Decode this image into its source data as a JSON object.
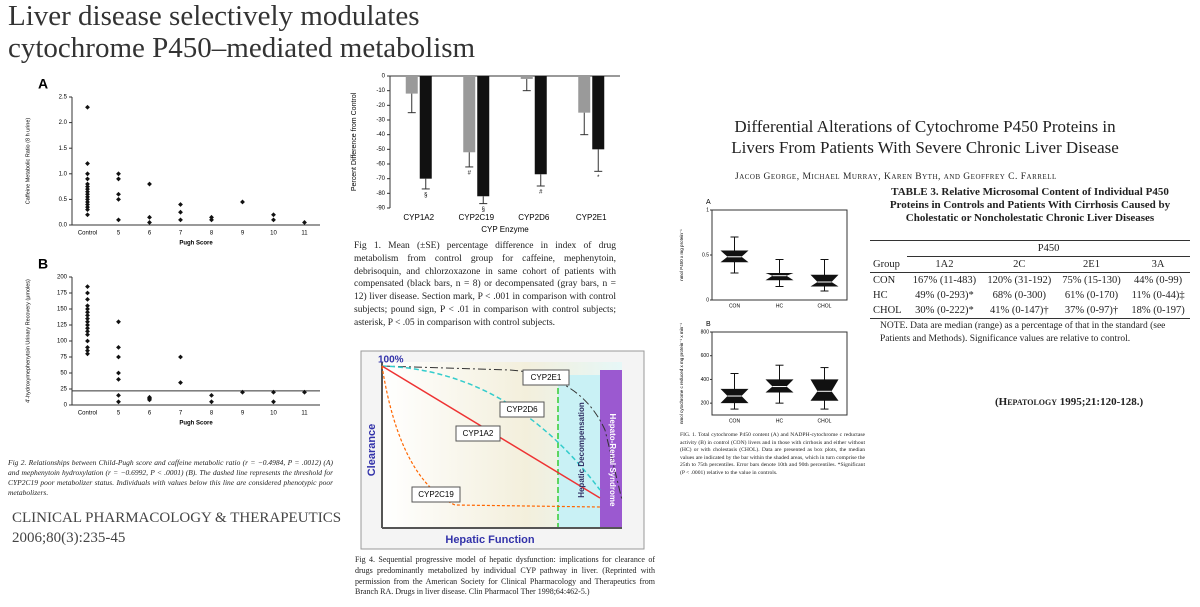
{
  "left_paper": {
    "title": [
      "Liver disease selectively modulates",
      "cytochrome P450–mediated metabolism"
    ],
    "fig2": {
      "panel_a": {
        "label": "A",
        "y_label": "Caffeine Metabolic Ratio (8 h urine)",
        "x_label": "Pugh Score",
        "categories": [
          "Control",
          "5",
          "6",
          "7",
          "8",
          "9",
          "10",
          "11"
        ],
        "groups": [
          [
            2.3,
            1.2,
            1.0,
            0.9,
            0.8,
            0.75,
            0.7,
            0.65,
            0.6,
            0.55,
            0.5,
            0.45,
            0.4,
            0.35,
            0.3,
            0.2
          ],
          [
            1.0,
            0.9,
            0.6,
            0.5,
            0.1
          ],
          [
            0.8,
            0.15,
            0.05
          ],
          [
            0.4,
            0.25,
            0.1
          ],
          [
            0.15,
            0.1
          ],
          [
            0.45
          ],
          [
            0.2,
            0.1
          ],
          [
            0.05
          ]
        ],
        "ylim": [
          0,
          2.5
        ],
        "yticks": [
          {
            "value": 0,
            "label": "0.0"
          },
          {
            "value": 0.5,
            "label": "0.5"
          },
          {
            "value": 1,
            "label": "1.0"
          },
          {
            "value": 1.5,
            "label": "1.5"
          },
          {
            "value": 2,
            "label": "2.0"
          },
          {
            "value": 2.5,
            "label": "2.5"
          }
        ]
      },
      "panel_b": {
        "label": "B",
        "y_label": "4'-hydroxymephenytoin Urinary Recovery (μmoles)",
        "x_label": "Pugh Score",
        "categories": [
          "Control",
          "5",
          "6",
          "7",
          "8",
          "9",
          "10",
          "11"
        ],
        "groups": [
          [
            185,
            175,
            165,
            155,
            150,
            145,
            140,
            135,
            130,
            125,
            120,
            115,
            110,
            100,
            90,
            85,
            80
          ],
          [
            130,
            90,
            75,
            50,
            40,
            15,
            5
          ],
          [
            12,
            10,
            8
          ],
          [
            75,
            35
          ],
          [
            15,
            5
          ],
          [
            20
          ],
          [
            20,
            5
          ],
          [
            20
          ]
        ],
        "threshold": 22,
        "ylim": [
          0,
          200
        ],
        "yticks": [
          0,
          25,
          50,
          75,
          100,
          125,
          150,
          175,
          200
        ]
      },
      "caption": "Fig 2. Relationships between Child-Pugh score and caffeine metabolic ratio (r = −0.4984, P = .0012) (A) and mephenytoin hydroxylation (r = −0.6992, P < .0001) (B). The dashed line represents the threshold for CYP2C19 poor metabolizer status. Individuals with values below this line are considered phenotypic poor metabolizers."
    },
    "journal": [
      "CLINICAL PHARMACOLOGY & THERAPEUTICS",
      "2006;80(3):235-45"
    ]
  },
  "fig1": {
    "y_label": "Percent Difference from Control",
    "x_label": "CYP Enzyme",
    "categories": [
      "CYP1A2",
      "CYP2C19",
      "CYP2D6",
      "CYP2E1"
    ],
    "series": [
      {
        "color": "#9a9a9a",
        "values": [
          -12,
          -52,
          -2,
          -25
        ],
        "errors": [
          13,
          10,
          8,
          15
        ],
        "marks": [
          null,
          "#",
          null,
          null
        ]
      },
      {
        "color": "#111111",
        "values": [
          -70,
          -82,
          -67,
          -50
        ],
        "errors": [
          7,
          5,
          8,
          15
        ],
        "marks": [
          "§",
          "§",
          "#",
          "*"
        ]
      }
    ],
    "ylim": [
      -90,
      0
    ],
    "yticks": [
      0,
      -10,
      -20,
      -30,
      -40,
      -50,
      -60,
      -70,
      -80,
      -90
    ],
    "caption": "Fig 1. Mean (±SE) percentage difference in index of drug metabolism from control group for caffeine, mephenytoin, debrisoquin, and chlorzoxazone in same cohort of patients with compensated (black bars, n = 8) or decompensated (gray bars, n = 12) liver disease. Section mark, P < .001 in comparison with control subjects; pound sign, P < .01 in comparison with control subjects; asterisk, P < .05 in comparison with control subjects."
  },
  "fig4": {
    "top_label": "100%",
    "y_label": "Clearance",
    "x_label": "Hepatic Function",
    "curves": [
      "CYP2E1",
      "CYP2D6",
      "CYP1A2",
      "CYP2C19"
    ],
    "zones": [
      "Hepatic Decompensation",
      "Hepato-Renal Syndrome"
    ],
    "caption": "Fig 4. Sequential progressive model of hepatic dysfunction: implications for clearance of drugs predominantly metabolized by individual CYP pathway in liver. (Reprinted with permission from the American Society for Clinical Pharmacology and Therapeutics from Branch RA. Drugs in liver disease. Clin Pharmacol Ther 1998;64:462-5.)"
  },
  "right_paper": {
    "title": [
      "Differential Alterations of Cytochrome P450 Proteins in",
      "Livers From Patients With Severe Chronic Liver Disease"
    ],
    "authors": "Jacob George, Michael Murray, Karen Byth, and Geoffrey C. Farrell",
    "boxfig": {
      "categories": [
        "CON",
        "HC",
        "CHOL"
      ],
      "panel_a": {
        "label": "A",
        "y_label": "nmol P450 x mg protein⁻¹",
        "ylim": [
          0,
          1
        ],
        "yticks": [
          0,
          0.5,
          1
        ],
        "boxes": [
          {
            "low": 0.3,
            "q1": 0.42,
            "median": 0.48,
            "q3": 0.55,
            "high": 0.7
          },
          {
            "low": 0.15,
            "q1": 0.22,
            "median": 0.27,
            "q3": 0.3,
            "high": 0.45
          },
          {
            "low": 0.1,
            "q1": 0.15,
            "median": 0.2,
            "q3": 0.28,
            "high": 0.45
          }
        ]
      },
      "panel_b": {
        "label": "B",
        "y_label": "nmol cytochrome c reduced x mg protein⁻¹ x min⁻¹",
        "ylim": [
          100,
          800
        ],
        "yticks": [
          200,
          400,
          600,
          800
        ],
        "boxes": [
          {
            "low": 150,
            "q1": 200,
            "median": 260,
            "q3": 320,
            "high": 450
          },
          {
            "low": 200,
            "q1": 290,
            "median": 340,
            "q3": 400,
            "high": 520
          },
          {
            "low": 150,
            "q1": 220,
            "median": 300,
            "q3": 400,
            "high": 500
          }
        ]
      },
      "caption": "FIG. 1. Total cytochrome P450 content (A) and NADPH-cytochrome c reductase activity (B) in control (CON) livers and in those with cirrhosis and either without (HC) or with cholestasis (CHOL). Data are presented as box plots, the median values are indicated by the bar within the shaded areas, which in turn comprise the 25th to 75th percentiles. Error bars denote 10th and 90th percentiles. *Significant (P < .0001) relative to the value in controls."
    },
    "table": {
      "title": "TABLE 3. Relative Microsomal Content of Individual P450 Proteins in Controls and Patients With Cirrhosis Caused by Cholestatic or Noncholestatic Chronic Liver Diseases",
      "group_header": "P450",
      "columns": [
        "Group",
        "1A2",
        "2C",
        "2E1",
        "3A"
      ],
      "rows": [
        [
          "CON",
          "167% (11-483)",
          "120% (31-192)",
          "75% (15-130)",
          "44% (0-99)"
        ],
        [
          "HC",
          "49% (0-293)*",
          "68% (0-300)",
          "61% (0-170)",
          "11% (0-44)‡"
        ],
        [
          "CHOL",
          "30% (0-222)*",
          "41% (0-147)†",
          "37% (0-97)†",
          "18% (0-197)"
        ]
      ],
      "note": "NOTE. Data are median (range) as a percentage of that in the standard (see Patients and Methods). Significance values are relative to control."
    },
    "citation": "(Hepatology 1995;21:120-128.)"
  }
}
